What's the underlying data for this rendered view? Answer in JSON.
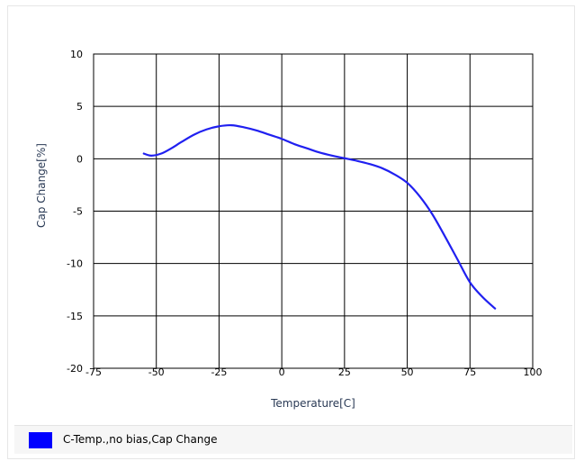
{
  "chart_data": {
    "type": "line",
    "title": "",
    "xlabel": "Temperature[C]",
    "ylabel": "Cap Change[%]",
    "xlim": [
      -75,
      100
    ],
    "ylim": [
      -20,
      10
    ],
    "x_ticks": [
      -75,
      -50,
      -25,
      0,
      25,
      50,
      75,
      100
    ],
    "y_ticks": [
      10,
      5,
      0,
      -5,
      -10,
      -15,
      -20
    ],
    "x_tick_labels": [
      "-75",
      "-50",
      "-25",
      "0",
      "25",
      "50",
      "75",
      "100"
    ],
    "y_tick_labels": [
      "10",
      "5",
      "0",
      "-5",
      "-10",
      "-15",
      "-20"
    ],
    "grid": true,
    "legend_position": "bottom",
    "series": [
      {
        "name": "C-Temp.,no bias,Cap Change",
        "color": "#2020f0",
        "x": [
          -55,
          -52,
          -48,
          -44,
          -40,
          -35,
          -30,
          -25,
          -20,
          -15,
          -10,
          -5,
          0,
          5,
          10,
          15,
          20,
          25,
          30,
          35,
          40,
          45,
          50,
          55,
          60,
          65,
          70,
          75,
          80,
          85
        ],
        "y": [
          0.5,
          0.3,
          0.5,
          1.0,
          1.6,
          2.3,
          2.8,
          3.1,
          3.2,
          3.0,
          2.7,
          2.3,
          1.9,
          1.4,
          1.0,
          0.6,
          0.3,
          0.05,
          -0.2,
          -0.5,
          -0.9,
          -1.5,
          -2.3,
          -3.6,
          -5.3,
          -7.4,
          -9.6,
          -11.8,
          -13.2,
          -14.3
        ]
      }
    ]
  },
  "legend": {
    "label": "C-Temp.,no bias,Cap Change",
    "swatch_color": "#0000ff"
  }
}
